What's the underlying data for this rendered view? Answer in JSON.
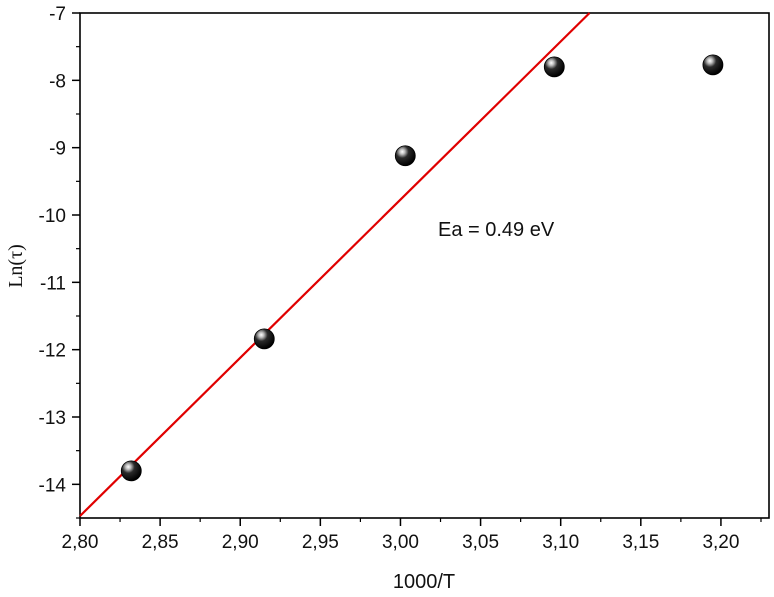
{
  "chart_data": {
    "type": "scatter",
    "title": "",
    "xlabel": "1000/T",
    "ylabel": "Ln(τ)",
    "xlim": [
      2.8,
      3.23
    ],
    "ylim": [
      -14.5,
      -7.0
    ],
    "x_ticks": [
      2.8,
      2.85,
      2.9,
      2.95,
      3.0,
      3.05,
      3.1,
      3.15,
      3.2
    ],
    "x_tick_labels": [
      "2,80",
      "2,85",
      "2,90",
      "2,95",
      "3,00",
      "3,05",
      "3,10",
      "3,15",
      "3,20"
    ],
    "y_ticks": [
      -14,
      -13,
      -12,
      -11,
      -10,
      -9,
      -8,
      -7
    ],
    "y_tick_labels": [
      "-14",
      "-13",
      "-12",
      "-11",
      "-10",
      "-9",
      "-8",
      "-7"
    ],
    "points": [
      {
        "x": 2.832,
        "y": -13.8
      },
      {
        "x": 2.915,
        "y": -11.84
      },
      {
        "x": 3.003,
        "y": -9.12
      },
      {
        "x": 3.096,
        "y": -7.8
      },
      {
        "x": 3.195,
        "y": -7.77
      }
    ],
    "fit_line": {
      "x": [
        2.8,
        3.118
      ],
      "y": [
        -14.47,
        -7.0
      ],
      "color": "#e00000"
    },
    "annotation": "Ea = 0.49 eV",
    "grid": false,
    "colors": {
      "points": "#111111",
      "fit": "#e00000",
      "axes": "#000000"
    }
  }
}
